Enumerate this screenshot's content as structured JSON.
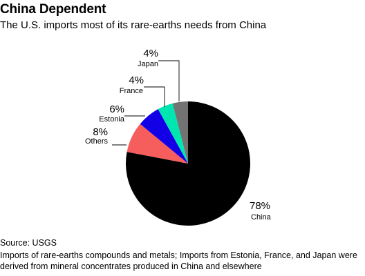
{
  "chart_data": {
    "type": "pie",
    "title": "China Dependent",
    "subtitle": "The U.S. imports most of its rare-earths needs from China",
    "slices": [
      {
        "name": "China",
        "value": 78,
        "label": "78%",
        "color": "#000000"
      },
      {
        "name": "Others",
        "value": 8,
        "label": "8%",
        "color": "#f65d5d"
      },
      {
        "name": "Estonia",
        "value": 6,
        "label": "6%",
        "color": "#1400e6"
      },
      {
        "name": "France",
        "value": 4,
        "label": "4%",
        "color": "#00e6b0"
      },
      {
        "name": "Japan",
        "value": 4,
        "label": "4%",
        "color": "#737373"
      }
    ],
    "source": "Source: USGS",
    "note": "Imports of rare-earths compounds and metals; Imports from Estonia, France, and Japan were derived from mineral concentrates produced in China and elsewhere"
  }
}
